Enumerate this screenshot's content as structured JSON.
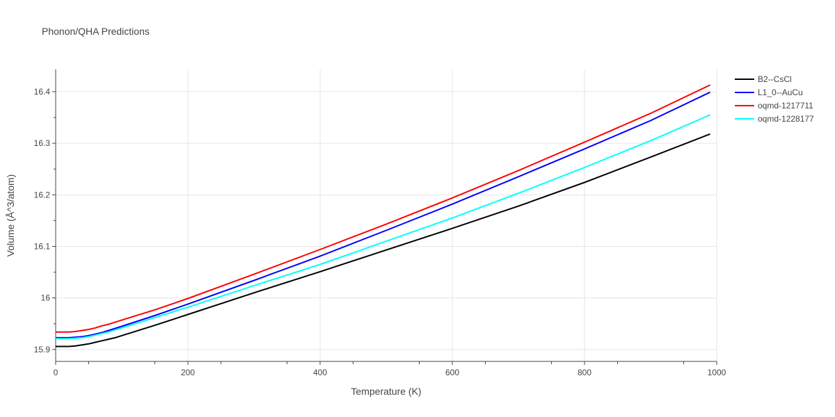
{
  "chart_data": {
    "type": "line",
    "title": "Phonon/QHA Predictions",
    "xlabel": "Temperature (K)",
    "ylabel": "Volume (Å^3/atom)",
    "xlim": [
      0,
      1000
    ],
    "ylim": [
      15.877,
      16.443
    ],
    "xticks": [
      0,
      200,
      400,
      600,
      800,
      1000
    ],
    "xtick_labels": [
      "0",
      "200",
      "400",
      "600",
      "800",
      "1000"
    ],
    "yticks": [
      15.9,
      16.0,
      16.1,
      16.2,
      16.3,
      16.4
    ],
    "ytick_labels": [
      "15.9",
      "16",
      "16.1",
      "16.2",
      "16.3",
      "16.4"
    ],
    "grid": true,
    "legend_position": "top-right",
    "x": [
      0,
      10,
      20,
      30,
      40,
      50,
      60,
      70,
      80,
      90,
      100,
      150,
      200,
      300,
      400,
      500,
      600,
      700,
      800,
      900,
      990
    ],
    "series": [
      {
        "name": "B2--CsCl",
        "color": "#000000",
        "values": [
          15.906,
          15.906,
          15.906,
          15.907,
          15.909,
          15.911,
          15.914,
          15.917,
          15.92,
          15.923,
          15.927,
          15.947,
          15.968,
          16.01,
          16.051,
          16.093,
          16.135,
          16.178,
          16.224,
          16.273,
          16.318
        ]
      },
      {
        "name": "L1_0--AuCu",
        "color": "#0000ff",
        "values": [
          15.923,
          15.923,
          15.923,
          15.924,
          15.925,
          15.927,
          15.93,
          15.933,
          15.937,
          15.941,
          15.945,
          15.966,
          15.988,
          16.034,
          16.081,
          16.131,
          16.182,
          16.235,
          16.289,
          16.344,
          16.399
        ]
      },
      {
        "name": "oqmd-1217711",
        "color": "#ff0000",
        "values": [
          15.934,
          15.934,
          15.934,
          15.935,
          15.937,
          15.939,
          15.942,
          15.946,
          15.949,
          15.953,
          15.957,
          15.977,
          15.999,
          16.046,
          16.094,
          16.143,
          16.194,
          16.247,
          16.302,
          16.358,
          16.413
        ]
      },
      {
        "name": "oqmd-1228177",
        "color": "#00ffff",
        "values": [
          15.921,
          15.921,
          15.921,
          15.922,
          15.923,
          15.925,
          15.928,
          15.931,
          15.934,
          15.938,
          15.942,
          15.962,
          15.982,
          16.024,
          16.065,
          16.11,
          16.155,
          16.203,
          16.253,
          16.305,
          16.355
        ]
      }
    ]
  }
}
